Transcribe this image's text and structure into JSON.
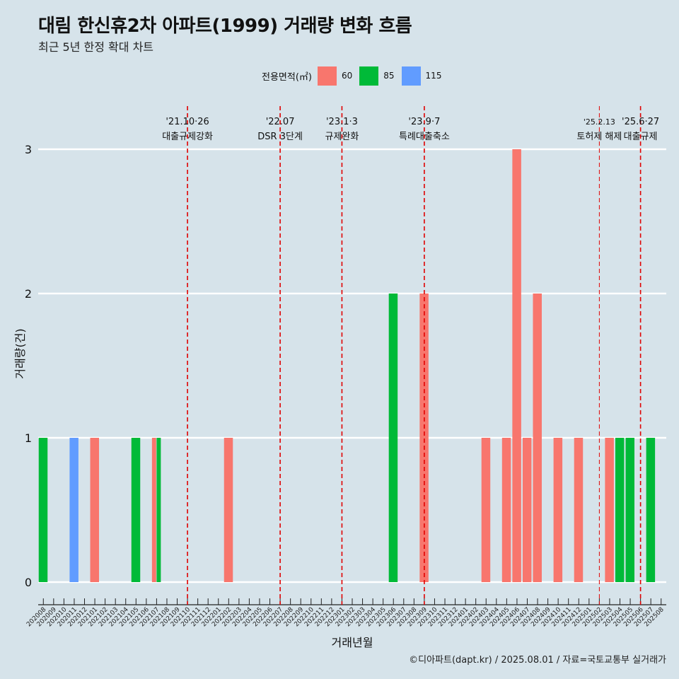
{
  "title": "대림 한신휴2차 아파트(1999) 거래량 변화 흐름",
  "subtitle": "최근 5년 한정 확대 차트",
  "caption": "©디아파트(dapt.kr) / 2025.08.01 / 자료=국토교통부 실거래가",
  "legend": {
    "title": "전용면적(㎡)",
    "items": [
      {
        "label": "60",
        "color": "#f8766d"
      },
      {
        "label": "85",
        "color": "#00ba38"
      },
      {
        "label": "115",
        "color": "#619cff"
      }
    ]
  },
  "chart_data": {
    "type": "bar",
    "xlabel": "거래년월",
    "ylabel": "거래량(건)",
    "ylim": [
      0,
      3
    ],
    "yticks": [
      0,
      1,
      2,
      3
    ],
    "grid": "horizontal",
    "legend_position": "top",
    "categories": [
      "202008",
      "202009",
      "202010",
      "202011",
      "202012",
      "202101",
      "202102",
      "202103",
      "202104",
      "202105",
      "202106",
      "202107",
      "202108",
      "202109",
      "202110",
      "202111",
      "202112",
      "202201",
      "202202",
      "202203",
      "202204",
      "202205",
      "202206",
      "202207",
      "202208",
      "202209",
      "202210",
      "202211",
      "202212",
      "202301",
      "202302",
      "202303",
      "202304",
      "202305",
      "202306",
      "202307",
      "202308",
      "202309",
      "202310",
      "202311",
      "202312",
      "202401",
      "202402",
      "202403",
      "202404",
      "202405",
      "202406",
      "202407",
      "202408",
      "202409",
      "202410",
      "202411",
      "202412",
      "202501",
      "202502",
      "202503",
      "202504",
      "202505",
      "202506",
      "202507",
      "202508"
    ],
    "series": [
      {
        "name": "60",
        "color": "#f8766d",
        "values": [
          0,
          0,
          0,
          0,
          0,
          1,
          0,
          0,
          0,
          0,
          0,
          1,
          0,
          0,
          0,
          0,
          0,
          0,
          1,
          0,
          0,
          0,
          0,
          0,
          0,
          0,
          0,
          0,
          0,
          0,
          0,
          0,
          0,
          0,
          0,
          0,
          0,
          2,
          0,
          0,
          0,
          0,
          0,
          1,
          0,
          1,
          3,
          1,
          2,
          0,
          1,
          0,
          1,
          0,
          0,
          1,
          0,
          0,
          0,
          0,
          0
        ]
      },
      {
        "name": "85",
        "color": "#00ba38",
        "values": [
          1,
          0,
          0,
          0,
          0,
          0,
          0,
          0,
          0,
          1,
          0,
          1,
          0,
          0,
          0,
          0,
          0,
          0,
          0,
          0,
          0,
          0,
          0,
          0,
          0,
          0,
          0,
          0,
          0,
          0,
          0,
          0,
          0,
          0,
          2,
          0,
          0,
          0,
          0,
          0,
          0,
          0,
          0,
          0,
          0,
          0,
          0,
          0,
          0,
          0,
          0,
          0,
          0,
          0,
          0,
          0,
          1,
          1,
          0,
          1,
          0
        ]
      },
      {
        "name": "115",
        "color": "#619cff",
        "values": [
          0,
          0,
          0,
          1,
          0,
          0,
          0,
          0,
          0,
          0,
          0,
          0,
          0,
          0,
          0,
          0,
          0,
          0,
          0,
          0,
          0,
          0,
          0,
          0,
          0,
          0,
          0,
          0,
          0,
          0,
          0,
          0,
          0,
          0,
          0,
          0,
          0,
          0,
          0,
          0,
          0,
          0,
          0,
          0,
          0,
          0,
          0,
          0,
          0,
          0,
          0,
          0,
          0,
          0,
          0,
          0,
          0,
          0,
          0,
          0,
          0
        ]
      }
    ],
    "annotations": [
      {
        "x": "202110",
        "date": "'21.10·26",
        "label": "대출규제강화"
      },
      {
        "x": "202207",
        "date": "'22.07",
        "label": "DSR 3단계"
      },
      {
        "x": "202301",
        "date": "'23.1·3",
        "label": "규제완화"
      },
      {
        "x": "202309",
        "date": "'23.9·7",
        "label": "특례대출축소"
      },
      {
        "x": "202502",
        "date": "'25.2.13",
        "label": "토허제 해제"
      },
      {
        "x": "202506",
        "date": "'25.6·27",
        "label": "대출규제"
      }
    ],
    "annotation_line_color": "#e00000"
  }
}
